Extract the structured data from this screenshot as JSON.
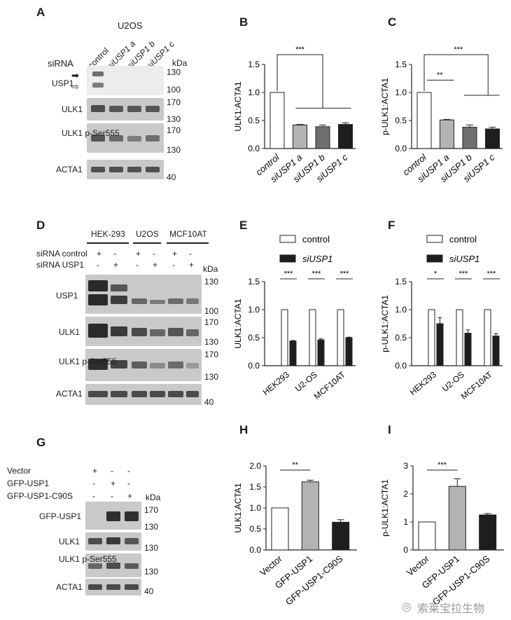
{
  "panels": {
    "A": {
      "label": "A",
      "cell": "U2OS",
      "sirna_header": "siRNA",
      "lanes": [
        "control",
        "siUSP1 a",
        "siUSP1 b",
        "siUSP1 c"
      ],
      "kda": "kDa",
      "rows": [
        {
          "name": "USP1",
          "markers": [
            "130",
            "100"
          ]
        },
        {
          "name": "ULK1",
          "markers": [
            "170",
            "130"
          ]
        },
        {
          "name": "ULK1 p-Ser555",
          "markers": [
            "170",
            "130"
          ]
        },
        {
          "name": "ACTA1",
          "markers": [
            "40"
          ]
        }
      ]
    },
    "D": {
      "label": "D",
      "cells": [
        "HEK-293",
        "U2OS",
        "MCF10AT"
      ],
      "row1": "siRNA control",
      "row2": "siRNA USP1",
      "signs1": [
        "+",
        "-",
        "+",
        "-",
        "+",
        "-"
      ],
      "signs2": [
        "-",
        "+",
        "-",
        "+",
        "-",
        "+"
      ],
      "kda": "kDa",
      "rows": [
        {
          "name": "USP1",
          "markers": [
            "130",
            "100"
          ]
        },
        {
          "name": "ULK1",
          "markers": [
            "170",
            "130"
          ]
        },
        {
          "name": "ULK1 p-Ser555",
          "markers": [
            "170",
            "130"
          ]
        },
        {
          "name": "ACTA1",
          "markers": [
            "40"
          ]
        }
      ]
    },
    "G": {
      "label": "G",
      "treat": [
        "Vector",
        "GFP-USP1",
        "GFP-USP1-C90S"
      ],
      "signs": [
        [
          "+",
          "-",
          "-"
        ],
        [
          "-",
          "+",
          "-"
        ],
        [
          "-",
          "-",
          "+"
        ]
      ],
      "kda": "kDa",
      "rows": [
        {
          "name": "GFP-USP1",
          "markers": [
            "170",
            "130"
          ]
        },
        {
          "name": "ULK1",
          "markers": [
            "130"
          ]
        },
        {
          "name": "ULK1 p-Ser555",
          "markers": [
            "130"
          ]
        },
        {
          "name": "ACTA1",
          "markers": [
            "40"
          ]
        }
      ]
    }
  },
  "chart_data": [
    {
      "panel": "B",
      "type": "bar",
      "ylabel": "ULK1:ACTA1",
      "ylim": [
        0,
        1.5
      ],
      "yticks": [
        "0.0",
        "0.5",
        "1.0",
        "1.5"
      ],
      "categories": [
        "control",
        "siUSP1 a",
        "siUSP1 b",
        "siUSP1 c"
      ],
      "values": [
        1.0,
        0.42,
        0.39,
        0.43
      ],
      "errors": [
        0,
        0.01,
        0.03,
        0.03
      ],
      "colors": [
        "#ffffff",
        "#b3b3b3",
        "#6f6f6f",
        "#1e1e1e"
      ],
      "significance": [
        "***"
      ]
    },
    {
      "panel": "C",
      "type": "bar",
      "ylabel": "p-ULK1:ACTA1",
      "ylim": [
        0,
        1.5
      ],
      "yticks": [
        "0.0",
        "0.5",
        "1.0",
        "1.5"
      ],
      "categories": [
        "control",
        "siUSP1 a",
        "siUSP1 b",
        "siUSP1 c"
      ],
      "values": [
        1.0,
        0.51,
        0.38,
        0.35
      ],
      "errors": [
        0,
        0.01,
        0.04,
        0.03
      ],
      "colors": [
        "#ffffff",
        "#b3b3b3",
        "#6f6f6f",
        "#1e1e1e"
      ],
      "significance": [
        "**",
        "***"
      ]
    },
    {
      "panel": "E",
      "type": "bar",
      "ylabel": "ULK1:ACTA1",
      "ylim": [
        0,
        1.5
      ],
      "yticks": [
        "0.0",
        "0.5",
        "1.0",
        "1.5"
      ],
      "categories": [
        "HEK293",
        "U2-OS",
        "MCF10AT"
      ],
      "series": [
        {
          "name": "control",
          "values": [
            1.0,
            1.0,
            1.0
          ],
          "errors": [
            0,
            0,
            0
          ]
        },
        {
          "name": "siUSP1",
          "values": [
            0.44,
            0.46,
            0.5
          ],
          "errors": [
            0.01,
            0.02,
            0.01
          ]
        }
      ],
      "significance": [
        "***",
        "***",
        "***"
      ]
    },
    {
      "panel": "F",
      "type": "bar",
      "ylabel": "p-ULK1:ACTA1",
      "ylim": [
        0,
        1.5
      ],
      "yticks": [
        "0.0",
        "0.5",
        "1.0",
        "1.5"
      ],
      "categories": [
        "HEK293",
        "U2-OS",
        "MCF10AT"
      ],
      "series": [
        {
          "name": "control",
          "values": [
            1.0,
            1.0,
            1.0
          ],
          "errors": [
            0,
            0,
            0
          ]
        },
        {
          "name": "siUSP1",
          "values": [
            0.75,
            0.58,
            0.53
          ],
          "errors": [
            0.11,
            0.06,
            0.04
          ]
        }
      ],
      "significance": [
        "*",
        "***",
        "***"
      ]
    },
    {
      "panel": "H",
      "type": "bar",
      "ylabel": "ULK1:ACTA1",
      "ylim": [
        0,
        2.0
      ],
      "yticks": [
        "0.0",
        "0.5",
        "1.0",
        "1.5",
        "2.0"
      ],
      "categories": [
        "Vector",
        "GFP-USP1",
        "GFP-USP1-C90S"
      ],
      "values": [
        1.0,
        1.62,
        0.66
      ],
      "errors": [
        0,
        0.04,
        0.06
      ],
      "colors": [
        "#ffffff",
        "#b3b3b3",
        "#1e1e1e"
      ],
      "significance": [
        "**"
      ]
    },
    {
      "panel": "I",
      "type": "bar",
      "ylabel": "p-ULK1:ACTA1",
      "ylim": [
        0,
        3
      ],
      "yticks": [
        "0",
        "1",
        "2",
        "3"
      ],
      "categories": [
        "Vector",
        "GFP-USP1",
        "GFP-USP1-C90S"
      ],
      "values": [
        1.0,
        2.27,
        1.25
      ],
      "errors": [
        0,
        0.27,
        0.05
      ],
      "colors": [
        "#ffffff",
        "#b3b3b3",
        "#1e1e1e"
      ],
      "significance": [
        "***"
      ]
    }
  ],
  "watermark": "索莱宝拉生物",
  "watermark_icon": "wechat-icon"
}
